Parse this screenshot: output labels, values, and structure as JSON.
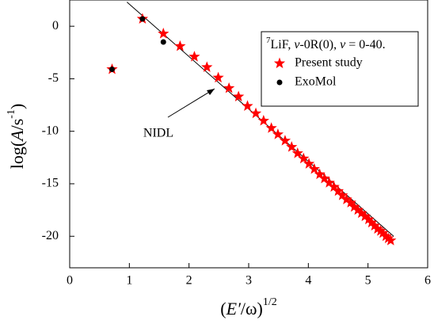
{
  "chart_data": {
    "type": "scatter",
    "xlabel": [
      "(",
      "E′",
      "/ω)",
      "1/2"
    ],
    "ylabel": [
      "log(",
      "A",
      "/s",
      "-1",
      ")"
    ],
    "legend_title": [
      "7",
      "LiF, ",
      "v",
      "-0R(0), ",
      "v",
      " = 0-40."
    ],
    "xlim": [
      0,
      6
    ],
    "xticks": [
      0,
      1,
      2,
      3,
      4,
      5,
      6
    ],
    "ylim": [
      -23,
      2.5
    ],
    "yticks": [
      0,
      -5,
      -10,
      -15,
      -20
    ],
    "legend": "upper right",
    "series": [
      {
        "name": "Present study",
        "color": "#ff0000",
        "marker": "star",
        "x": [
          0.71,
          1.22,
          1.57,
          1.85,
          2.09,
          2.3,
          2.49,
          2.67,
          2.83,
          2.98,
          3.12,
          3.25,
          3.38,
          3.49,
          3.61,
          3.72,
          3.82,
          3.92,
          4.01,
          4.1,
          4.19,
          4.27,
          4.35,
          4.43,
          4.5,
          4.57,
          4.64,
          4.71,
          4.77,
          4.83,
          4.89,
          4.95,
          5.01,
          5.06,
          5.11,
          5.16,
          5.21,
          5.25,
          5.3,
          5.34,
          5.38
        ],
        "values": [
          -4.1,
          0.7,
          -0.7,
          -1.9,
          -2.9,
          -3.9,
          -4.9,
          -5.9,
          -6.7,
          -7.6,
          -8.3,
          -9.0,
          -9.7,
          -10.3,
          -10.9,
          -11.5,
          -12.1,
          -12.6,
          -13.1,
          -13.6,
          -14.1,
          -14.5,
          -14.9,
          -15.3,
          -15.7,
          -16.1,
          -16.5,
          -16.8,
          -17.2,
          -17.5,
          -17.8,
          -18.1,
          -18.4,
          -18.7,
          -19.0,
          -19.3,
          -19.5,
          -19.7,
          -20.0,
          -20.2,
          -20.4
        ]
      },
      {
        "name": "ExoMol",
        "color": "#000000",
        "marker": "circle",
        "x": [
          0.71,
          1.22,
          1.57
        ],
        "values": [
          -4.1,
          0.7,
          -1.5
        ]
      }
    ],
    "reference_line": {
      "x": [
        0.96,
        5.43
      ],
      "y": [
        2.3,
        -20.0
      ],
      "color": "#000000"
    },
    "annotations": [
      {
        "text": "NIDL"
      }
    ]
  }
}
